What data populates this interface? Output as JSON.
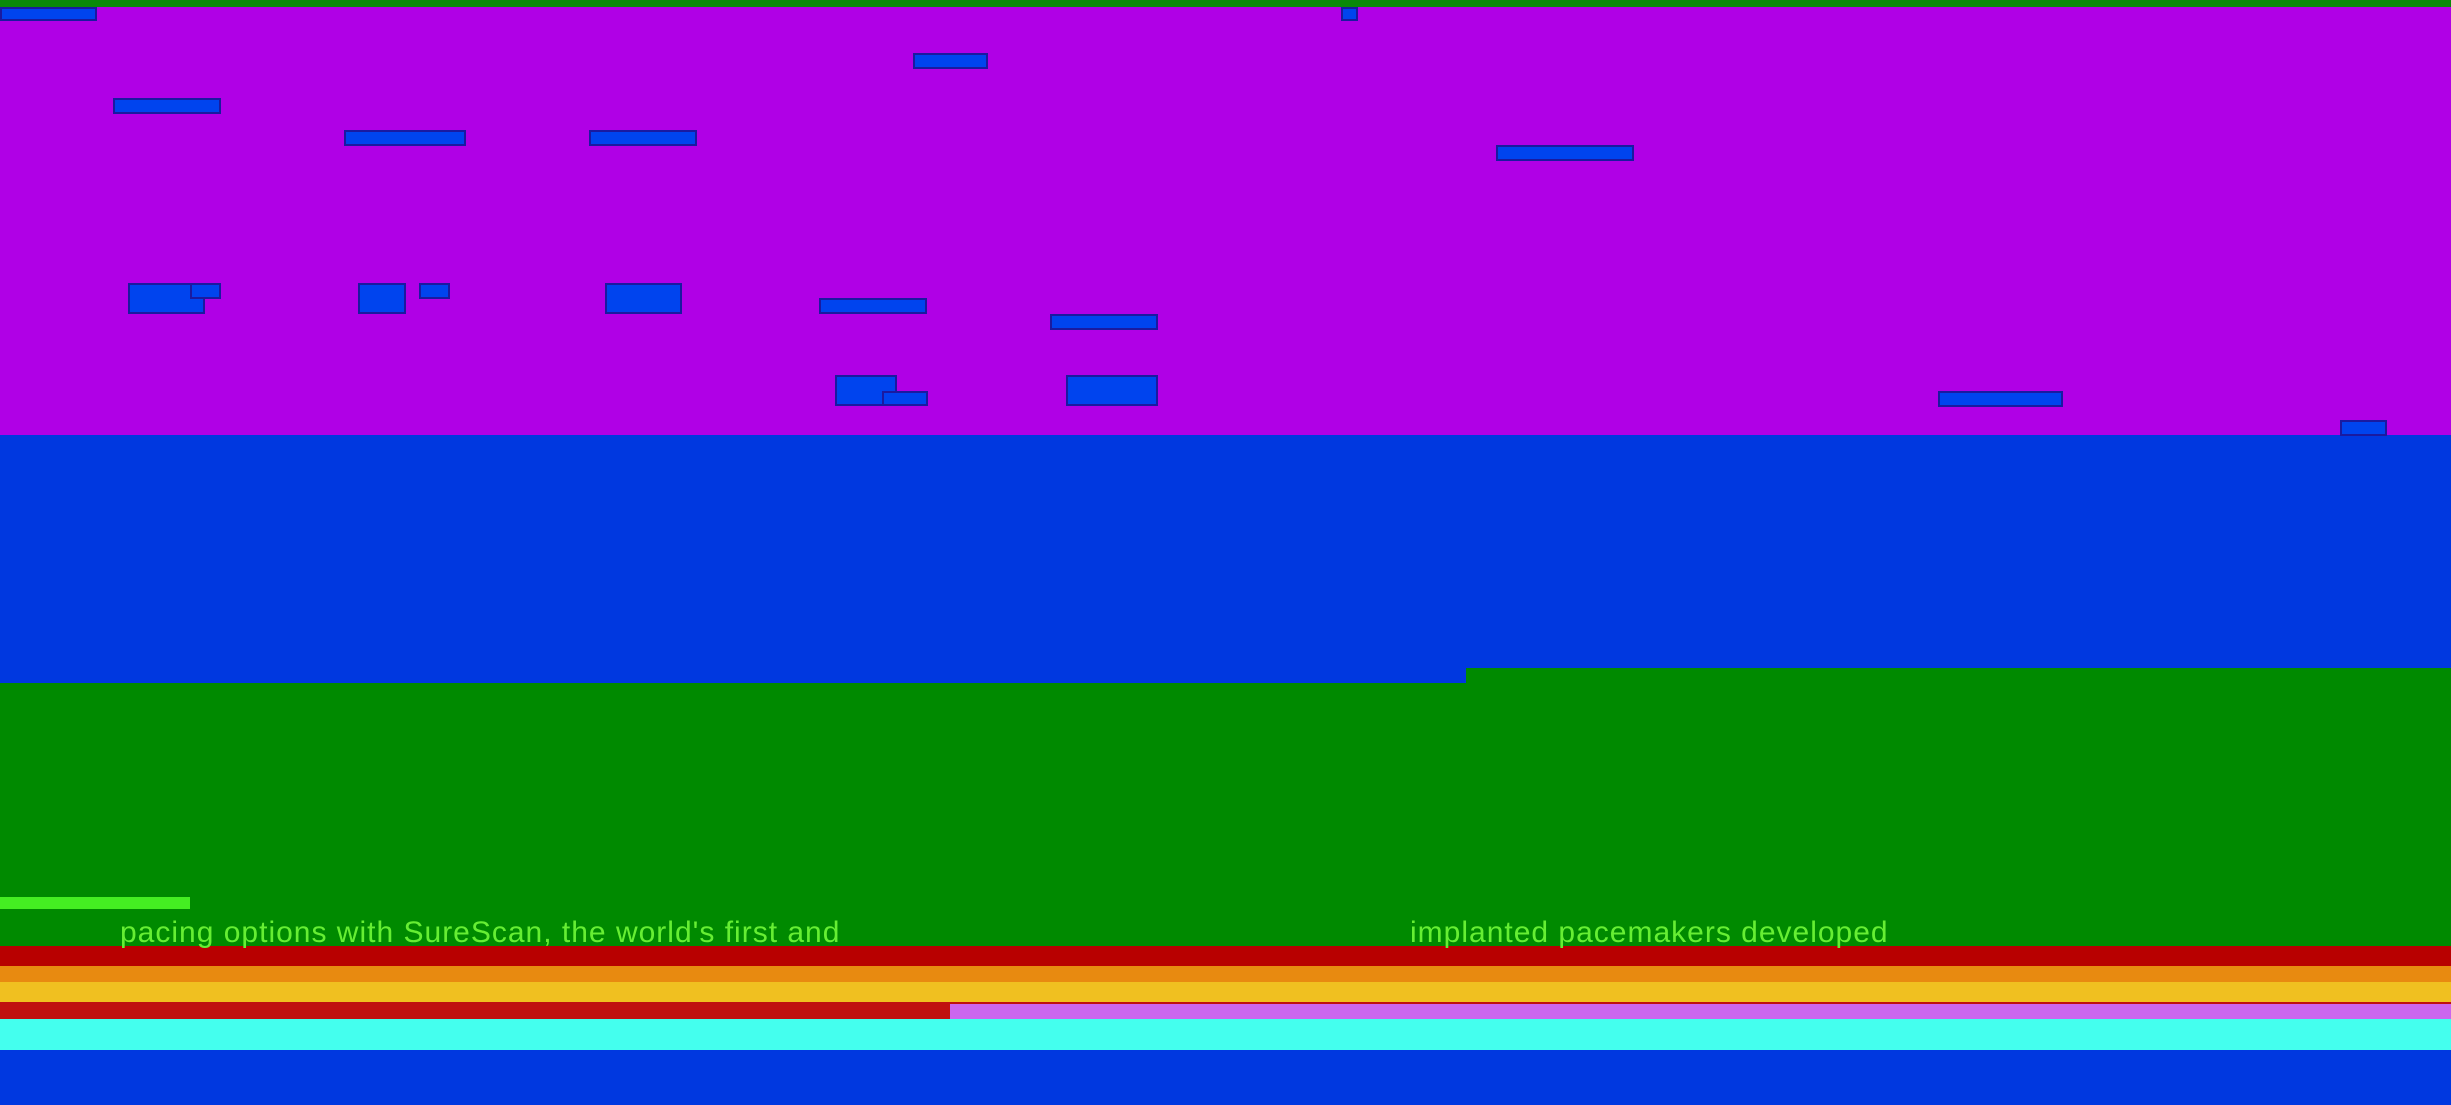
{
  "content": {
    "line1": "pacing options with SureScan, the world's first and",
    "line2": "implanted pacemakers developed"
  }
}
